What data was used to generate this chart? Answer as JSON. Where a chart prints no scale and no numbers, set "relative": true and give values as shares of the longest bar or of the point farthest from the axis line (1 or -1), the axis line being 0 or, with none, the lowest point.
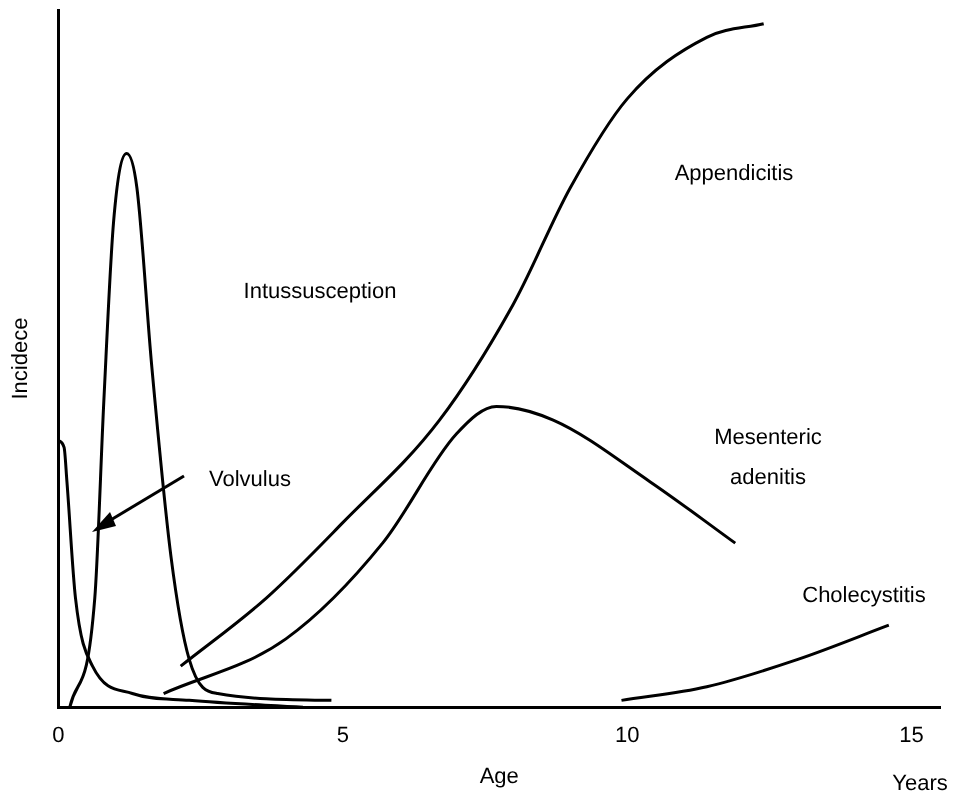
{
  "chart_data": {
    "type": "line",
    "relative": true,
    "xlabel": "Age",
    "ylabel": "Incidece",
    "xlim": [
      0,
      15.5
    ],
    "xticks": [
      0,
      5,
      10,
      15
    ],
    "grid": false,
    "legend": false,
    "marker": "none",
    "line_style": "solid",
    "series": [
      {
        "color": "#000000",
        "x": [
          0,
          0.1,
          0.15,
          0.3,
          0.6,
          1.3,
          2.3,
          4.3
        ],
        "values": [
          0.39,
          0.38,
          0.33,
          0.16,
          0.06,
          0.02,
          0.01,
          0
        ]
      },
      {
        "color": "#000000",
        "x": [
          0.2,
          0.64,
          0.8,
          0.97,
          1.2,
          1.38,
          1.64,
          1.98,
          2.3,
          2.8,
          4.8
        ],
        "values": [
          0,
          0.16,
          0.45,
          0.71,
          0.81,
          0.76,
          0.5,
          0.22,
          0.07,
          0.02,
          0.01
        ]
      },
      {
        "color": "#000000",
        "x": [
          2.15,
          3.66,
          5,
          6.7,
          8,
          9,
          10,
          11.4,
          12.4
        ],
        "values": [
          0.06,
          0.16,
          0.27,
          0.42,
          0.59,
          0.76,
          0.89,
          0.98,
          1
        ]
      },
      {
        "color": "#000000",
        "x": [
          1.85,
          4,
          5.7,
          7,
          7.7,
          8.7,
          10.4,
          11.9
        ],
        "values": [
          0.02,
          0.1,
          0.24,
          0.4,
          0.44,
          0.42,
          0.33,
          0.24
        ]
      },
      {
        "color": "#000000",
        "x": [
          9.9,
          11.4,
          13,
          14.6
        ],
        "values": [
          0.01,
          0.03,
          0.07,
          0.12
        ]
      }
    ],
    "annotations": [
      "Appendicitis",
      "Intussusception",
      "Volvulus",
      "Mesenteric\nadenitis",
      "Cholecystitis",
      "Years"
    ]
  }
}
